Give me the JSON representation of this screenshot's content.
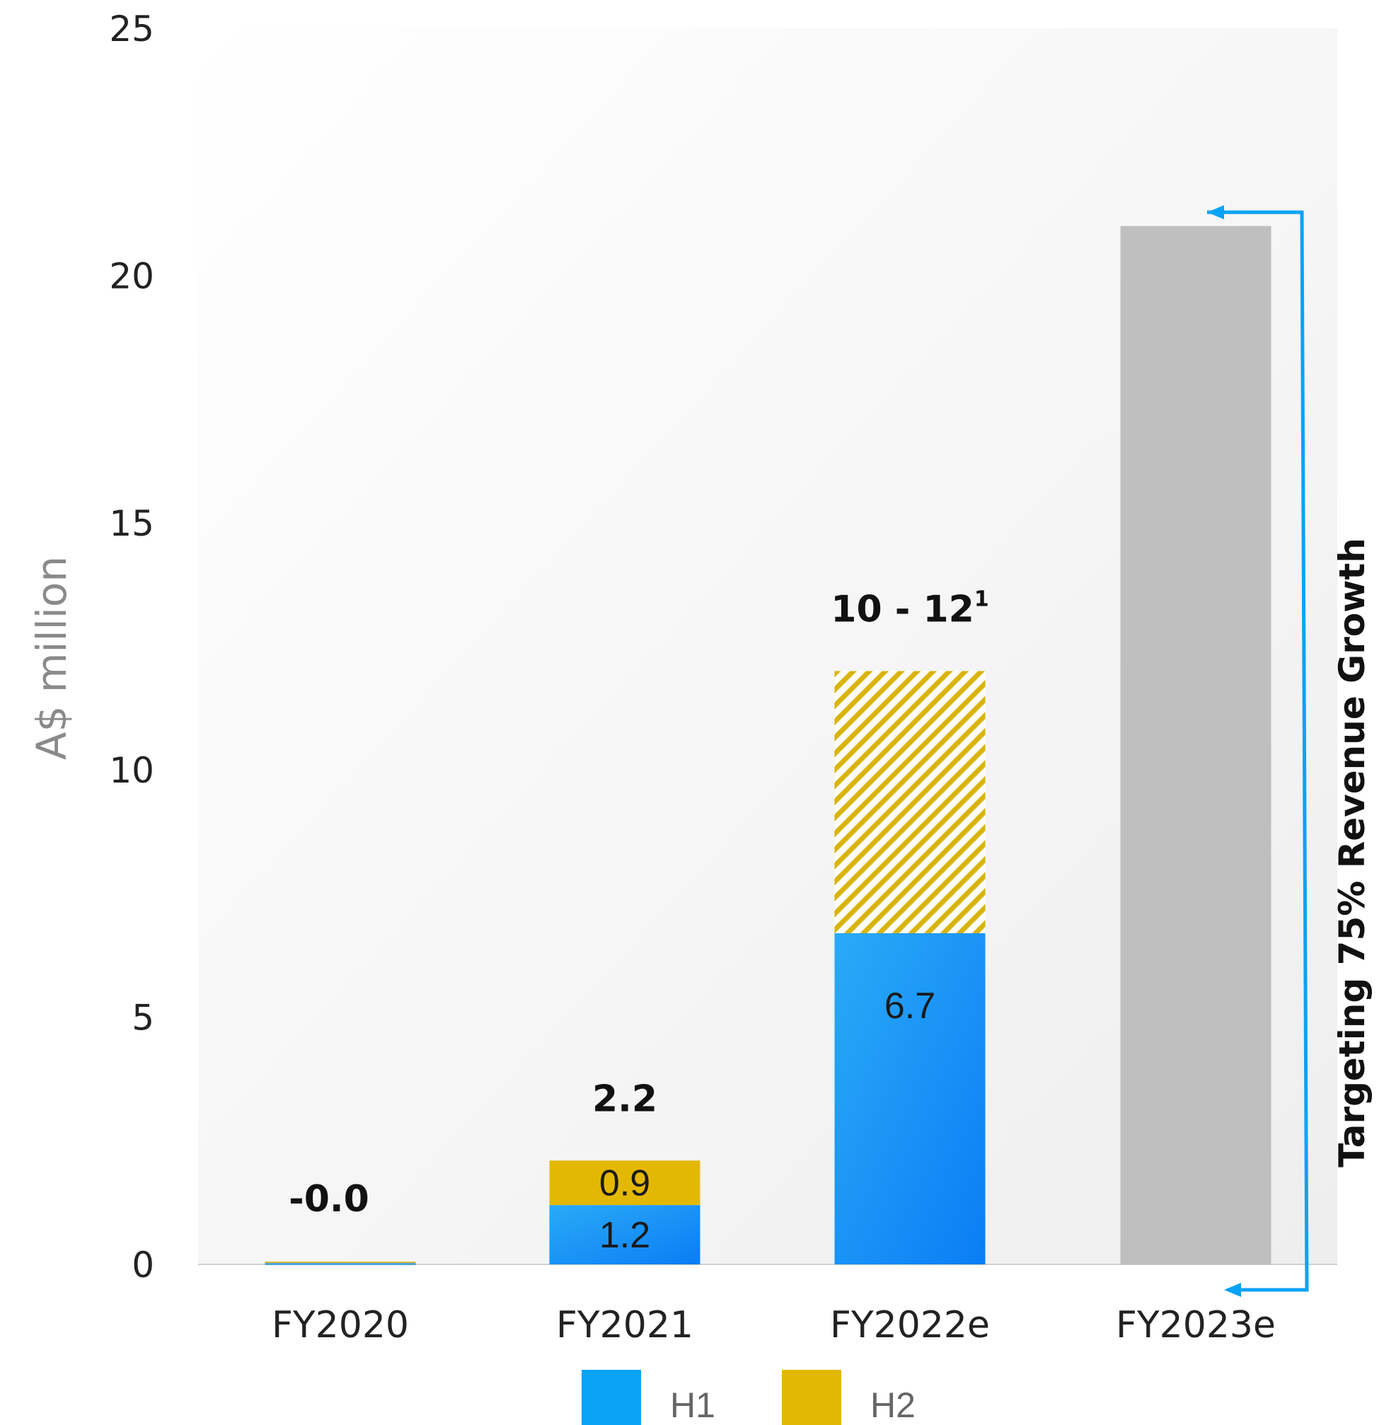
{
  "chart_data": {
    "type": "bar",
    "stacked": true,
    "ylabel": "A$ million",
    "ylim": [
      0,
      25
    ],
    "yticks": [
      "0",
      "5",
      "10",
      "15",
      "20",
      "25"
    ],
    "categories": [
      "FY2020",
      "FY2021",
      "FY2022e",
      "FY2023e"
    ],
    "series": [
      {
        "name": "H1",
        "values": [
          0,
          1.2,
          6.7,
          null
        ]
      },
      {
        "name": "H2",
        "values": [
          0,
          0.9,
          5.3,
          null
        ]
      }
    ],
    "projection": {
      "category": "FY2023e",
      "value": 21
    },
    "segment_labels": {
      "H1": [
        "",
        "1.2",
        "6.7",
        ""
      ],
      "H2": [
        "",
        "0.9",
        "",
        ""
      ]
    },
    "total_labels": [
      {
        "main": "-0.0",
        "sup": ""
      },
      {
        "main": "2.2",
        "sup": ""
      },
      {
        "main": "10 - 12",
        "sup": "1"
      },
      {
        "main": "",
        "sup": ""
      }
    ],
    "annotation": "Targeting 75% Revenue Growth",
    "legend": [
      {
        "name": "H1",
        "color": "#0aa2f5"
      },
      {
        "name": "H2",
        "color": "#e3b803"
      }
    ],
    "colors": {
      "h1": "#1a9df6",
      "h2": "#e3b803",
      "projection": "#bfbfbf",
      "arrow": "#0aa2f5"
    },
    "grid": false,
    "legend_position": "bottom"
  }
}
